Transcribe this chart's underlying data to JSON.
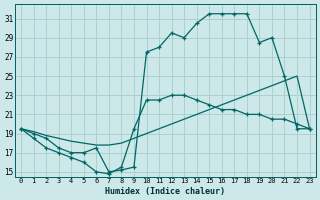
{
  "xlabel": "Humidex (Indice chaleur)",
  "bg_color": "#cce8e8",
  "grid_color": "#aacccc",
  "line_color": "#006666",
  "xlim": [
    -0.5,
    23.5
  ],
  "ylim": [
    14.5,
    32.5
  ],
  "xticks": [
    0,
    1,
    2,
    3,
    4,
    5,
    6,
    7,
    8,
    9,
    10,
    11,
    12,
    13,
    14,
    15,
    16,
    17,
    18,
    19,
    20,
    21,
    22,
    23
  ],
  "yticks": [
    15,
    17,
    19,
    21,
    23,
    25,
    27,
    29,
    31
  ],
  "line1_x": [
    0,
    1,
    2,
    3,
    4,
    5,
    6,
    7,
    8,
    9,
    10,
    11,
    12,
    13,
    14,
    15,
    16,
    17,
    18,
    19,
    20,
    21,
    22,
    23
  ],
  "line1_y": [
    19.5,
    19.0,
    18.5,
    17.5,
    17.0,
    17.0,
    17.5,
    15.0,
    15.2,
    15.5,
    27.5,
    28.0,
    29.5,
    29.0,
    30.5,
    31.5,
    31.5,
    31.5,
    31.5,
    28.5,
    29.0,
    25.0,
    19.5,
    19.5
  ],
  "line2_x": [
    0,
    1,
    2,
    3,
    4,
    5,
    6,
    7,
    8,
    9,
    10,
    11,
    12,
    13,
    14,
    15,
    16,
    17,
    18,
    19,
    20,
    21,
    22,
    23
  ],
  "line2_y": [
    19.5,
    18.5,
    17.5,
    17.0,
    16.5,
    16.0,
    15.0,
    14.8,
    15.5,
    19.5,
    22.5,
    22.5,
    23.0,
    23.0,
    22.5,
    22.0,
    21.5,
    21.5,
    21.0,
    21.0,
    20.5,
    20.5,
    20.0,
    19.5
  ],
  "line3_x": [
    0,
    1,
    2,
    3,
    4,
    5,
    6,
    7,
    8,
    9,
    10,
    11,
    12,
    13,
    14,
    15,
    16,
    17,
    18,
    19,
    20,
    21,
    22,
    23
  ],
  "line3_y": [
    19.5,
    19.2,
    18.8,
    18.5,
    18.2,
    18.0,
    17.8,
    17.8,
    18.0,
    18.5,
    19.0,
    19.5,
    20.0,
    20.5,
    21.0,
    21.5,
    22.0,
    22.5,
    23.0,
    23.5,
    24.0,
    24.5,
    25.0,
    19.5
  ]
}
